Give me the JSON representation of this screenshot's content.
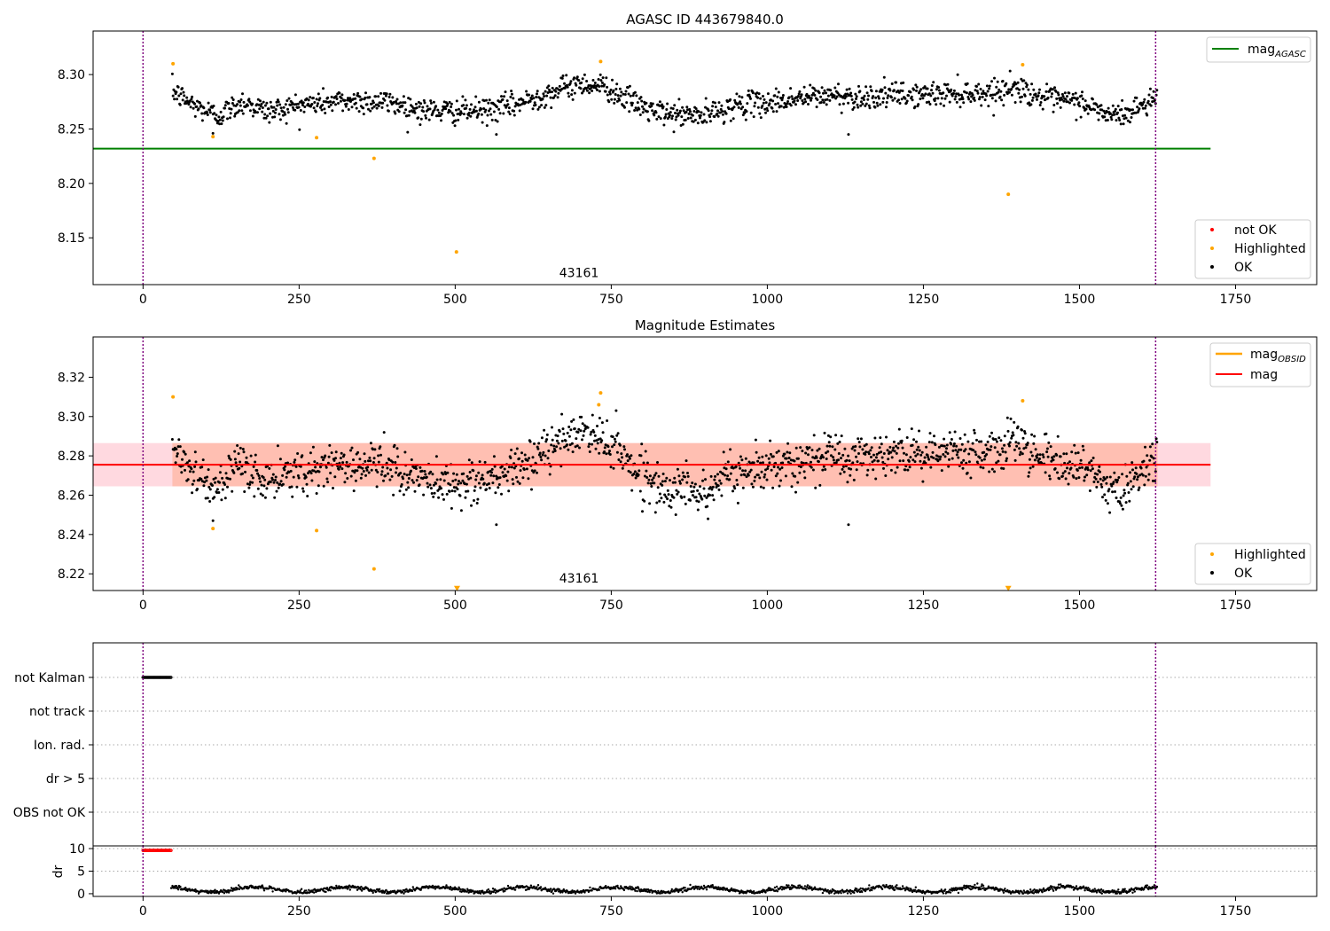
{
  "chart_data": [
    {
      "type": "scatter",
      "title": "AGASC ID 443679840.0",
      "xlim": [
        -80,
        1880
      ],
      "ylim": [
        8.107,
        8.34
      ],
      "xticks": [
        0,
        250,
        500,
        750,
        1000,
        1250,
        1500,
        1750
      ],
      "yticks": [
        8.15,
        8.2,
        8.25,
        8.3
      ],
      "ytick_labels": [
        "8.15",
        "8.20",
        "8.25",
        "8.30"
      ],
      "xtick_labels": [
        "0",
        "250",
        "500",
        "750",
        "1000",
        "1250",
        "1500",
        "1750"
      ],
      "annotation": "43161",
      "annotation_x": 812,
      "annotation_y": 8.114,
      "vlines": [
        0,
        1622
      ],
      "hline": {
        "y": 8.232,
        "x_range": [
          -80,
          1710
        ],
        "color": "#008000"
      },
      "ok_trend": {
        "x_range": [
          47,
          1625
        ],
        "knots": [
          [
            47,
            8.285
          ],
          [
            80,
            8.272
          ],
          [
            120,
            8.262
          ],
          [
            160,
            8.275
          ],
          [
            200,
            8.266
          ],
          [
            250,
            8.272
          ],
          [
            300,
            8.275
          ],
          [
            350,
            8.276
          ],
          [
            400,
            8.274
          ],
          [
            450,
            8.267
          ],
          [
            500,
            8.266
          ],
          [
            550,
            8.267
          ],
          [
            600,
            8.273
          ],
          [
            650,
            8.283
          ],
          [
            700,
            8.292
          ],
          [
            740,
            8.289
          ],
          [
            780,
            8.276
          ],
          [
            820,
            8.265
          ],
          [
            860,
            8.263
          ],
          [
            900,
            8.262
          ],
          [
            950,
            8.272
          ],
          [
            1000,
            8.274
          ],
          [
            1050,
            8.278
          ],
          [
            1100,
            8.281
          ],
          [
            1150,
            8.279
          ],
          [
            1200,
            8.281
          ],
          [
            1250,
            8.281
          ],
          [
            1300,
            8.283
          ],
          [
            1350,
            8.283
          ],
          [
            1400,
            8.288
          ],
          [
            1450,
            8.277
          ],
          [
            1500,
            8.275
          ],
          [
            1550,
            8.262
          ],
          [
            1580,
            8.265
          ],
          [
            1625,
            8.28
          ]
        ],
        "noise": 0.0075
      },
      "outliers_ok": [
        [
          566,
          8.245
        ],
        [
          1130,
          8.245
        ],
        [
          112,
          8.246
        ]
      ],
      "highlighted": [
        [
          48,
          8.31
        ],
        [
          112,
          8.243
        ],
        [
          278,
          8.242
        ],
        [
          370,
          8.223
        ],
        [
          502,
          8.137
        ],
        [
          733,
          8.312
        ],
        [
          1386,
          8.19
        ],
        [
          1409,
          8.309
        ]
      ],
      "not_ok": [],
      "legend_lines": [
        "mag_AGASC"
      ],
      "legend_markers": [
        "not OK",
        "Highlighted",
        "OK"
      ],
      "colors": {
        "ok": "#000000",
        "highlighted": "#FFA500",
        "not_ok": "#FF0000",
        "mag_agasc": "#008000",
        "vline": "#800080"
      }
    },
    {
      "type": "scatter",
      "title": "Magnitude Estimates",
      "xlim": [
        -80,
        1880
      ],
      "ylim": [
        8.2115,
        8.3405
      ],
      "xticks": [
        0,
        250,
        500,
        750,
        1000,
        1250,
        1500,
        1750
      ],
      "xtick_labels": [
        "0",
        "250",
        "500",
        "750",
        "1000",
        "1250",
        "1500",
        "1750"
      ],
      "yticks": [
        8.22,
        8.24,
        8.26,
        8.28,
        8.3,
        8.32
      ],
      "ytick_labels": [
        "8.22",
        "8.24",
        "8.26",
        "8.28",
        "8.30",
        "8.32"
      ],
      "annotation": "43161",
      "annotation_x": 812,
      "annotation_y": 8.2155,
      "vlines": [
        0,
        1622
      ],
      "mag_line": {
        "y": 8.2755,
        "x_range": [
          -80,
          1710
        ],
        "color": "#FF0000"
      },
      "mag_band": {
        "y_range": [
          8.2645,
          8.2865
        ],
        "x_range": [
          -80,
          1710
        ],
        "color": "#FFC0CB"
      },
      "mag_obsid_band": {
        "y_range": [
          8.2645,
          8.2865
        ],
        "x_range": [
          47,
          1625
        ],
        "color": "#FFA07A"
      },
      "triangles": [
        [
          503,
          8.2125
        ],
        [
          1386,
          8.2125
        ]
      ],
      "highlighted": [
        [
          48,
          8.31
        ],
        [
          112,
          8.243
        ],
        [
          278,
          8.242
        ],
        [
          370,
          8.2225
        ],
        [
          733,
          8.312
        ],
        [
          730,
          8.306
        ],
        [
          1409,
          8.308
        ]
      ],
      "legend_lines": [
        "mag_OBSID",
        "mag"
      ],
      "legend_markers": [
        "Highlighted",
        "OK"
      ],
      "colors": {
        "ok": "#000000",
        "highlighted": "#FFA500",
        "mag": "#FF0000",
        "mag_obsid": "#FFA500",
        "vline": "#800080"
      }
    },
    {
      "type": "scatter",
      "title": "",
      "xlim": [
        -80,
        1880
      ],
      "flag_labels": [
        "not Kalman",
        "not track",
        "Ion. rad.",
        "dr > 5",
        "OBS not OK"
      ],
      "not_kalman_x_range": [
        0,
        45
      ],
      "vlines": [
        0,
        1622
      ]
    },
    {
      "type": "scatter",
      "title": "",
      "ylabel": "dr",
      "xlim": [
        -80,
        1880
      ],
      "ylim": [
        -0.6,
        10.6
      ],
      "yticks": [
        0,
        5,
        10
      ],
      "ytick_labels": [
        "0",
        "5",
        "10"
      ],
      "xticks": [
        0,
        250,
        500,
        750,
        1000,
        1250,
        1500,
        1750
      ],
      "xtick_labels": [
        "0",
        "250",
        "500",
        "750",
        "1000",
        "1250",
        "1500",
        "1750"
      ],
      "red_x_range": [
        0,
        45
      ],
      "red_y": 9.6,
      "dr_x_range": [
        45,
        1625
      ],
      "dr_mean": 0.9,
      "vlines": [
        0,
        1622
      ]
    }
  ]
}
